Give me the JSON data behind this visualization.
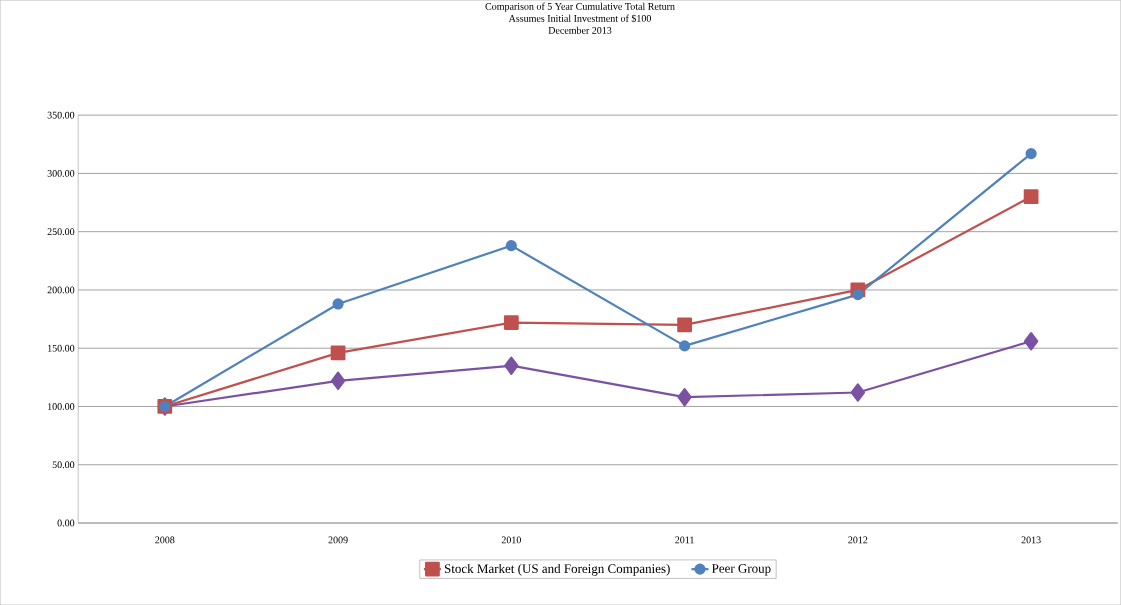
{
  "chart_data": {
    "type": "line",
    "title": "Comparison of 5 Year Cumulative Total Return",
    "subtitle": "Assumes Initial Investment of $100",
    "annotations": [
      "December 2013"
    ],
    "categories": [
      "2008",
      "2009",
      "2010",
      "2011",
      "2012",
      "2013"
    ],
    "series": [
      {
        "color": "#7b52a3",
        "marker": "diamond",
        "values": [
          100,
          122,
          135,
          108,
          112,
          156
        ]
      },
      {
        "name": "Stock Market (US and Foreign Companies)",
        "color": "#c0504d",
        "marker": "square",
        "values": [
          100,
          146,
          172,
          170,
          200,
          280
        ]
      },
      {
        "name": "Peer Group",
        "color": "#4f81bd",
        "marker": "circle",
        "values": [
          100,
          188,
          238,
          152,
          196,
          317
        ]
      }
    ],
    "ylim": [
      0,
      350
    ],
    "yticks": [
      {
        "value": 0,
        "label": "0.00"
      },
      {
        "value": 50,
        "label": "50.00"
      },
      {
        "value": 100,
        "label": "100.00"
      },
      {
        "value": 150,
        "label": "150.00"
      },
      {
        "value": 200,
        "label": "200.00"
      },
      {
        "value": 250,
        "label": "250.00"
      },
      {
        "value": 300,
        "label": "300.00"
      },
      {
        "value": 350,
        "label": "350.00"
      }
    ],
    "grid": "y",
    "legend": "bottom",
    "line_style": "solid"
  }
}
